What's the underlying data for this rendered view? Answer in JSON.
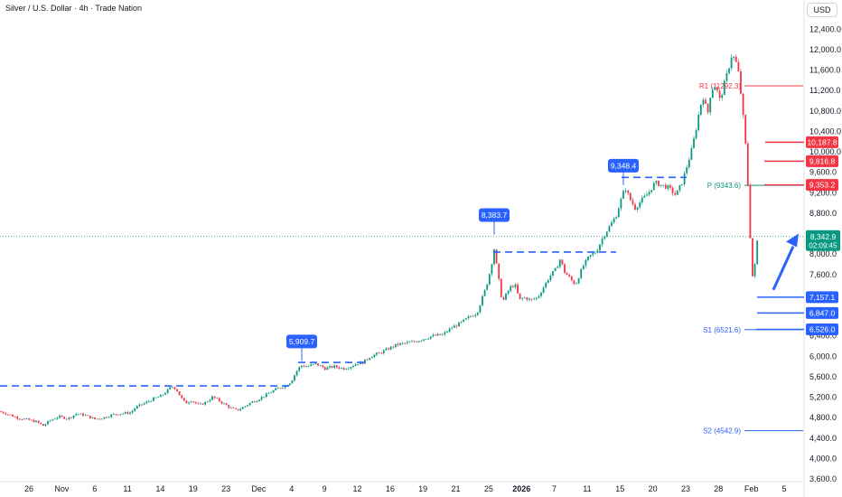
{
  "header": {
    "title": "Silver / U.S. Dollar · 4h · Trade Nation",
    "currency": "USD"
  },
  "chart_data": {
    "type": "candlestick",
    "title": "Silver / U.S. Dollar · 4h · Trade Nation",
    "ylim": [
      3600,
      12600
    ],
    "y_ticks": [
      "12,400.0",
      "12,000.0",
      "11,600.0",
      "11,200.0",
      "10,800.0",
      "10,400.0",
      "10,000.0",
      "9,600.0",
      "9,200.0",
      "8,800.0",
      "8,400.0",
      "8,000.0",
      "7,600.0",
      "7,200.0",
      "6,800.0",
      "6,400.0",
      "6,000.0",
      "5,600.0",
      "5,200.0",
      "4,800.0",
      "4,400.0",
      "4,000.0",
      "3,600.0"
    ],
    "x_ticks": [
      "26",
      "Nov",
      "6",
      "11",
      "14",
      "19",
      "23",
      "Dec",
      "4",
      "9",
      "12",
      "16",
      "19",
      "21",
      "25",
      "2026",
      "7",
      "11",
      "15",
      "20",
      "23",
      "28",
      "Feb",
      "5"
    ],
    "bold_x_ticks": [
      "2026"
    ],
    "price_path": [
      [
        0,
        4920
      ],
      [
        10,
        4860
      ],
      [
        20,
        4790
      ],
      [
        30,
        4760
      ],
      [
        40,
        4720
      ],
      [
        48,
        4640
      ],
      [
        56,
        4750
      ],
      [
        65,
        4820
      ],
      [
        75,
        4780
      ],
      [
        85,
        4880
      ],
      [
        95,
        4840
      ],
      [
        105,
        4770
      ],
      [
        115,
        4800
      ],
      [
        125,
        4860
      ],
      [
        135,
        4880
      ],
      [
        145,
        4900
      ],
      [
        150,
        5000
      ],
      [
        160,
        5080
      ],
      [
        170,
        5170
      ],
      [
        178,
        5220
      ],
      [
        185,
        5320
      ],
      [
        190,
        5410
      ],
      [
        195,
        5360
      ],
      [
        200,
        5200
      ],
      [
        205,
        5080
      ],
      [
        212,
        5140
      ],
      [
        220,
        5040
      ],
      [
        228,
        5100
      ],
      [
        235,
        5200
      ],
      [
        240,
        5160
      ],
      [
        245,
        5100
      ],
      [
        255,
        4990
      ],
      [
        262,
        4940
      ],
      [
        270,
        5010
      ],
      [
        278,
        5100
      ],
      [
        285,
        5150
      ],
      [
        295,
        5250
      ],
      [
        305,
        5350
      ],
      [
        315,
        5420
      ],
      [
        322,
        5500
      ],
      [
        328,
        5700
      ],
      [
        333,
        5820
      ],
      [
        340,
        5800
      ],
      [
        350,
        5850
      ],
      [
        360,
        5760
      ],
      [
        370,
        5800
      ],
      [
        380,
        5760
      ],
      [
        388,
        5800
      ],
      [
        395,
        5860
      ],
      [
        402,
        5880
      ],
      [
        410,
        6000
      ],
      [
        420,
        6060
      ],
      [
        430,
        6150
      ],
      [
        440,
        6230
      ],
      [
        450,
        6260
      ],
      [
        460,
        6290
      ],
      [
        470,
        6350
      ],
      [
        480,
        6400
      ],
      [
        490,
        6420
      ],
      [
        500,
        6560
      ],
      [
        510,
        6650
      ],
      [
        520,
        6780
      ],
      [
        528,
        6850
      ],
      [
        533,
        7100
      ],
      [
        538,
        7350
      ],
      [
        543,
        7700
      ],
      [
        547,
        8100
      ],
      [
        552,
        7500
      ],
      [
        556,
        7050
      ],
      [
        560,
        7200
      ],
      [
        565,
        7350
      ],
      [
        570,
        7400
      ],
      [
        575,
        7100
      ],
      [
        580,
        7150
      ],
      [
        588,
        7100
      ],
      [
        595,
        7150
      ],
      [
        600,
        7300
      ],
      [
        608,
        7550
      ],
      [
        615,
        7700
      ],
      [
        620,
        7900
      ],
      [
        625,
        7650
      ],
      [
        632,
        7500
      ],
      [
        637,
        7400
      ],
      [
        645,
        7750
      ],
      [
        652,
        7950
      ],
      [
        660,
        8050
      ],
      [
        668,
        8350
      ],
      [
        675,
        8550
      ],
      [
        682,
        8750
      ],
      [
        688,
        9100
      ],
      [
        692,
        9300
      ],
      [
        698,
        9050
      ],
      [
        703,
        8900
      ],
      [
        710,
        9050
      ],
      [
        718,
        9200
      ],
      [
        725,
        9400
      ],
      [
        732,
        9350
      ],
      [
        740,
        9300
      ],
      [
        748,
        9150
      ],
      [
        755,
        9400
      ],
      [
        760,
        9700
      ],
      [
        765,
        10000
      ],
      [
        770,
        10400
      ],
      [
        775,
        10900
      ],
      [
        779,
        11100
      ],
      [
        783,
        10700
      ],
      [
        787,
        11200
      ],
      [
        792,
        11300
      ],
      [
        797,
        11000
      ],
      [
        802,
        11350
      ],
      [
        806,
        11600
      ],
      [
        810,
        11900
      ],
      [
        814,
        11800
      ],
      [
        818,
        11500
      ],
      [
        822,
        10800
      ],
      [
        825,
        10200
      ],
      [
        828,
        9300
      ],
      [
        831,
        8100
      ],
      [
        834,
        7300
      ],
      [
        837,
        8200
      ],
      [
        840,
        8343
      ]
    ],
    "last_price": 8342.9,
    "countdown": "02:09:45",
    "annotations": [
      {
        "label": "5,909.7",
        "value": 5909.7
      },
      {
        "label": "8,383.7",
        "value": 8383.7
      },
      {
        "label": "9,348.4",
        "value": 9348.4
      }
    ],
    "price_markers": [
      {
        "label": "10,187.8",
        "value": 10187.8,
        "color": "#f23645"
      },
      {
        "label": "9,816.8",
        "value": 9816.8,
        "color": "#f23645"
      },
      {
        "label": "9,353.2",
        "value": 9353.2,
        "color": "#f23645"
      },
      {
        "label": "7,157.1",
        "value": 7157.1,
        "color": "#2962ff"
      },
      {
        "label": "6,847.0",
        "value": 6847.0,
        "color": "#2962ff"
      },
      {
        "label": "6,526.0",
        "value": 6526.0,
        "color": "#2962ff"
      }
    ],
    "pivot_levels": [
      {
        "label": "R1 (11292.3)",
        "value": 11292.3,
        "color": "#f23645"
      },
      {
        "label": "P (9343.6)",
        "value": 9343.6,
        "color": "#089981"
      },
      {
        "label": "S1 (6521.6)",
        "value": 6521.6,
        "color": "#2962ff"
      },
      {
        "label": "S2 (4542.9)",
        "value": 4542.9,
        "color": "#2962ff"
      }
    ],
    "colors": {
      "up": "#089981",
      "down": "#f23645",
      "blue": "#2962ff",
      "last_price_bg": "#089981"
    }
  }
}
